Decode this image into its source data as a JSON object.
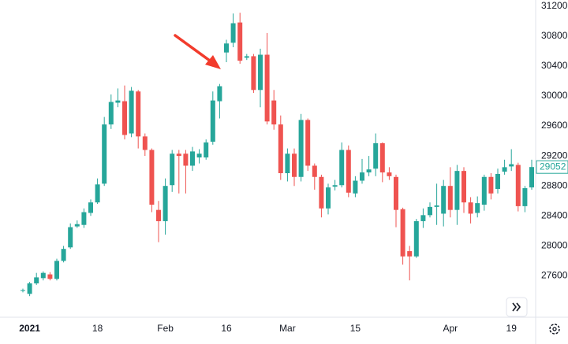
{
  "chart_data": {
    "type": "candlestick",
    "categories": [
      null,
      "2021",
      null,
      null,
      null,
      null,
      null,
      null,
      null,
      null,
      null,
      "18",
      null,
      null,
      null,
      null,
      null,
      null,
      null,
      null,
      null,
      "Feb",
      null,
      null,
      null,
      null,
      null,
      null,
      null,
      null,
      "16",
      null,
      null,
      null,
      null,
      null,
      null,
      null,
      null,
      "Mar",
      null,
      null,
      null,
      null,
      null,
      null,
      null,
      null,
      null,
      "15",
      null,
      null,
      null,
      null,
      null,
      null,
      null,
      null,
      null,
      null,
      null,
      null,
      null,
      "Apr",
      null,
      null,
      null,
      null,
      null,
      null,
      null,
      null,
      "19",
      null,
      null,
      null
    ],
    "open": [
      27400,
      27360,
      27500,
      27570,
      27620,
      27560,
      27800,
      27980,
      28260,
      28280,
      28440,
      28580,
      28830,
      29620,
      29910,
      29930,
      29500,
      30060,
      29460,
      29280,
      28480,
      28330,
      28810,
      29230,
      29230,
      29070,
      29180,
      29180,
      29390,
      29930,
      30580,
      30710,
      30980,
      30510,
      30530,
      30080,
      30550,
      29940,
      29620,
      28970,
      29230,
      28920,
      29680,
      29070,
      28920,
      28500,
      28790,
      28810,
      29280,
      28700,
      28870,
      28980,
      29030,
      29370,
      28980,
      28920,
      28490,
      27930,
      27860,
      28330,
      28410,
      28520,
      28430,
      28800,
      28480,
      29000,
      28580,
      28440,
      28550,
      28920,
      28760,
      28990,
      29060,
      29080,
      28530,
      28780
    ],
    "high": [
      27430,
      27520,
      27640,
      27660,
      27650,
      27830,
      28000,
      28300,
      28340,
      28500,
      28620,
      28900,
      29720,
      30020,
      30100,
      30140,
      30120,
      30080,
      29500,
      29300,
      28600,
      28900,
      29280,
      29280,
      29280,
      29320,
      29290,
      29420,
      30060,
      30160,
      30750,
      31100,
      31110,
      30560,
      30560,
      30630,
      30840,
      30080,
      29740,
      29300,
      29300,
      29760,
      29700,
      29100,
      28950,
      28830,
      28880,
      29380,
      29340,
      28930,
      29160,
      29200,
      29500,
      29380,
      29050,
      28950,
      28510,
      28000,
      28360,
      28500,
      28580,
      28830,
      28880,
      29050,
      29080,
      29050,
      28650,
      28660,
      28950,
      28970,
      29030,
      29150,
      29290,
      29110,
      28800,
      29150
    ],
    "low": [
      27380,
      27330,
      27480,
      27540,
      27540,
      27540,
      27780,
      27960,
      28240,
      28240,
      28400,
      28560,
      28800,
      29560,
      29850,
      29420,
      29450,
      29300,
      29200,
      28450,
      28050,
      28150,
      28720,
      28700,
      28700,
      29000,
      29100,
      29150,
      29350,
      29700,
      30450,
      30650,
      30430,
      30480,
      30040,
      29850,
      29620,
      29550,
      28880,
      28860,
      28800,
      28860,
      29000,
      28750,
      28380,
      28420,
      28740,
      28780,
      28650,
      28650,
      28830,
      28930,
      28930,
      28850,
      28880,
      28250,
      27750,
      27540,
      27840,
      28240,
      28380,
      28280,
      28260,
      28380,
      28280,
      28440,
      28300,
      28380,
      28470,
      28620,
      28700,
      28950,
      29000,
      28460,
      28450,
      28750
    ],
    "close": [
      27410,
      27500,
      27580,
      27640,
      27560,
      27800,
      27960,
      28250,
      28290,
      28450,
      28580,
      28820,
      29620,
      29920,
      29940,
      29480,
      30070,
      29460,
      29280,
      28550,
      28330,
      28800,
      29230,
      29200,
      29070,
      29260,
      29230,
      29380,
      29940,
      30130,
      30700,
      30970,
      30470,
      30530,
      30080,
      30550,
      29660,
      29620,
      28970,
      29230,
      28920,
      29680,
      29070,
      28920,
      28500,
      28780,
      28810,
      29280,
      28710,
      28870,
      28980,
      29020,
      29370,
      28980,
      28930,
      28480,
      27860,
      27860,
      28330,
      28410,
      28520,
      28540,
      28800,
      28480,
      29000,
      28580,
      28430,
      28570,
      28920,
      28700,
      28960,
      29050,
      29090,
      28530,
      28770,
      29052
    ],
    "up_color": "#26a69a",
    "down_color": "#ef5350",
    "ylim": [
      27080,
      31280
    ],
    "yticks": [
      27600,
      28000,
      28400,
      28800,
      29200,
      29600,
      30000,
      30400,
      30800,
      31200
    ],
    "grid": false
  }
}
